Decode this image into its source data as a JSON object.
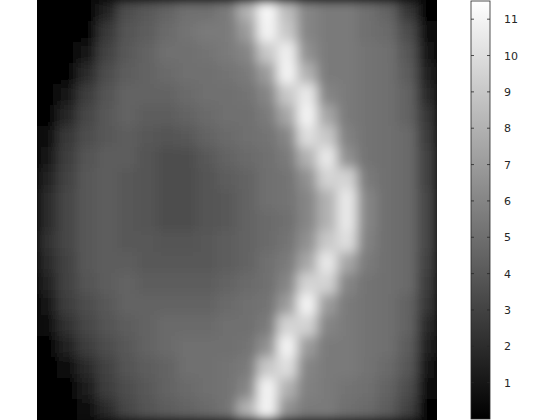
{
  "chart_data": {
    "type": "heatmap",
    "tick_labels": false,
    "colorbar_range": [
      0,
      11.5
    ],
    "colorbar_ticks": [
      1,
      2,
      3,
      4,
      5,
      6,
      7,
      8,
      9,
      10,
      11
    ],
    "cells": [
      [
        0.2,
        0.2,
        0.2,
        1.5,
        3.5,
        4,
        4.5,
        5,
        5,
        5.5,
        8,
        11.2,
        8.5,
        6,
        5.5,
        5.5,
        5,
        4.5,
        2.5,
        0.2
      ],
      [
        0.2,
        0.2,
        0.2,
        2.5,
        3.8,
        4.2,
        4.8,
        5.2,
        5.5,
        5.5,
        7,
        11,
        9,
        6,
        5.5,
        5.5,
        5,
        4.8,
        3.5,
        0.5
      ],
      [
        0.2,
        0.2,
        1,
        3,
        4,
        4.5,
        5,
        5,
        5.2,
        5.5,
        6,
        9,
        10.8,
        6.5,
        5.5,
        5.5,
        5.2,
        5,
        4,
        1
      ],
      [
        0.2,
        0.2,
        2,
        3.5,
        4.2,
        4.5,
        4.8,
        5,
        5,
        5.2,
        5.5,
        7,
        11,
        8,
        5.5,
        5.5,
        5.2,
        5,
        4.2,
        1.5
      ],
      [
        0.2,
        1,
        2.8,
        3.8,
        4.5,
        4.5,
        4.5,
        4.8,
        5,
        5,
        5.2,
        6,
        9,
        10.5,
        6,
        5.5,
        5.2,
        5,
        4.5,
        2
      ],
      [
        0.2,
        1.8,
        3.2,
        4,
        4.5,
        4.2,
        4.2,
        4.5,
        4.8,
        5,
        5,
        5.5,
        7.5,
        11,
        7.5,
        5.5,
        5.2,
        5,
        4.5,
        2.5
      ],
      [
        0.5,
        2.5,
        3.5,
        4,
        4.2,
        4,
        3.8,
        4,
        4.5,
        4.8,
        5,
        5.2,
        6,
        10,
        9,
        5.8,
        5.2,
        5,
        4.8,
        2.8
      ],
      [
        1,
        2.8,
        3.8,
        4.2,
        4.2,
        3.8,
        3.5,
        3.5,
        4,
        4.5,
        4.8,
        5,
        5.5,
        8,
        10.5,
        6.5,
        5.2,
        5,
        4.8,
        3
      ],
      [
        1.5,
        3,
        4,
        4.2,
        4,
        3.8,
        3.5,
        3.5,
        3.8,
        4.2,
        4.5,
        5,
        5.2,
        6.5,
        9.5,
        9.5,
        5.5,
        5,
        4.8,
        3
      ],
      [
        2,
        3.2,
        4,
        4.2,
        4,
        3.8,
        3.5,
        3.5,
        3.8,
        4,
        4.5,
        5,
        5.2,
        6,
        8,
        10.5,
        6,
        5,
        4.8,
        3.2
      ],
      [
        2,
        3.2,
        4,
        4.2,
        4,
        3.8,
        3.5,
        3.5,
        3.8,
        4,
        4.5,
        4.8,
        5,
        6,
        8,
        10.5,
        6,
        5,
        4.8,
        3.2
      ],
      [
        2.2,
        3.2,
        4,
        4.2,
        4,
        4,
        3.8,
        3.8,
        4,
        4.2,
        4.5,
        4.8,
        5.2,
        6.5,
        9,
        10,
        5.8,
        5,
        4.8,
        3.2
      ],
      [
        2,
        3,
        4,
        4.2,
        4.2,
        4,
        4,
        4,
        4,
        4.2,
        4.5,
        5,
        5.5,
        7.5,
        10.5,
        7.5,
        5.5,
        5,
        4.8,
        3
      ],
      [
        1.5,
        3,
        3.8,
        4.2,
        4.5,
        4.2,
        4.2,
        4.2,
        4.2,
        4.5,
        4.8,
        5,
        6,
        9.5,
        9.5,
        6,
        5.2,
        5,
        4.8,
        2.8
      ],
      [
        1,
        2.8,
        3.5,
        4,
        4.5,
        4.5,
        4.5,
        4.5,
        4.5,
        4.8,
        5,
        5.2,
        7,
        11,
        7,
        5.5,
        5.2,
        5,
        4.5,
        2.5
      ],
      [
        0.5,
        2.2,
        3.2,
        3.8,
        4.2,
        4.5,
        4.8,
        4.8,
        4.8,
        5,
        5,
        5.5,
        9.5,
        9.5,
        6,
        5.5,
        5.2,
        5,
        4.5,
        2
      ],
      [
        0.2,
        1.5,
        2.8,
        3.5,
        4,
        4.5,
        4.8,
        5,
        5,
        5,
        5.2,
        6.5,
        11,
        7,
        5.5,
        5.5,
        5.2,
        5,
        4.2,
        1.5
      ],
      [
        0.2,
        0.5,
        2,
        3,
        3.8,
        4.2,
        4.5,
        5,
        5,
        5.2,
        5.5,
        9,
        10,
        6,
        5.5,
        5.5,
        5.2,
        4.8,
        4,
        1
      ],
      [
        0.2,
        0.2,
        1.2,
        2.8,
        3.5,
        4,
        4.5,
        4.8,
        5,
        5.2,
        6,
        11,
        8,
        5.8,
        5.5,
        5.2,
        5,
        4.5,
        3.5,
        0.5
      ],
      [
        0.2,
        0.2,
        0.5,
        2,
        3.2,
        3.8,
        4.2,
        4.5,
        4.8,
        5.2,
        8,
        11,
        6.5,
        5.5,
        5.5,
        5,
        4.8,
        4.2,
        3,
        0.2
      ]
    ]
  }
}
